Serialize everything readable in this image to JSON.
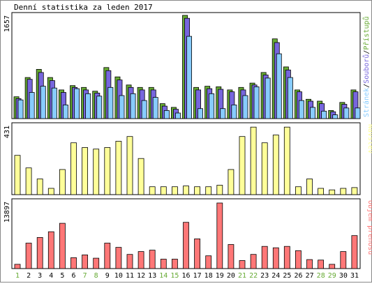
{
  "chart_data": [
    {
      "type": "bar",
      "title": "Denní statistika za leden 2017",
      "panel": "top",
      "y_label_value": "1657",
      "categories": [
        "1",
        "2",
        "3",
        "4",
        "5",
        "6",
        "7",
        "8",
        "9",
        "10",
        "11",
        "12",
        "13",
        "14",
        "15",
        "16",
        "17",
        "18",
        "19",
        "20",
        "21",
        "22",
        "23",
        "24",
        "25",
        "26",
        "27",
        "28",
        "29",
        "30",
        "31"
      ],
      "weekend_days": [
        "1",
        "7",
        "8",
        "14",
        "15",
        "21",
        "22",
        "28",
        "29"
      ],
      "ylim": [
        0,
        1657
      ],
      "legend": [
        "Stránek",
        "Souborů",
        "Přístupů"
      ],
      "series": [
        {
          "name": "Přístupů",
          "color": "#66aa33",
          "values": [
            350,
            660,
            790,
            660,
            460,
            530,
            500,
            440,
            820,
            670,
            540,
            500,
            500,
            240,
            180,
            1657,
            500,
            520,
            510,
            460,
            500,
            570,
            740,
            1280,
            830,
            460,
            310,
            280,
            130,
            260,
            460
          ]
        },
        {
          "name": "Souborů",
          "color": "#7766dd",
          "values": [
            320,
            630,
            740,
            610,
            420,
            500,
            460,
            410,
            770,
            620,
            500,
            460,
            460,
            200,
            150,
            1610,
            460,
            480,
            470,
            430,
            460,
            540,
            700,
            1220,
            780,
            430,
            280,
            240,
            110,
            230,
            430
          ]
        },
        {
          "name": "Stránek",
          "color": "#88ccff",
          "values": [
            300,
            420,
            520,
            490,
            220,
            480,
            400,
            360,
            500,
            370,
            400,
            290,
            340,
            130,
            90,
            1320,
            160,
            400,
            160,
            220,
            370,
            510,
            650,
            1040,
            660,
            290,
            180,
            120,
            60,
            170,
            170
          ]
        }
      ]
    },
    {
      "type": "bar",
      "panel": "middle",
      "y_label_value": "431",
      "ylim": [
        0,
        431
      ],
      "series": [
        {
          "name": "Návštěv",
          "color": "#ffff99",
          "values": [
            250,
            170,
            100,
            40,
            160,
            330,
            300,
            290,
            300,
            340,
            370,
            230,
            50,
            50,
            50,
            55,
            50,
            50,
            60,
            160,
            370,
            430,
            330,
            380,
            430,
            50,
            100,
            40,
            30,
            40,
            45
          ]
        }
      ]
    },
    {
      "type": "bar",
      "panel": "bottom",
      "y_label_value": "13897",
      "ylim": [
        0,
        13897
      ],
      "series": [
        {
          "name": "Objem přenosů",
          "color": "#ff7777",
          "values": [
            900,
            5400,
            6600,
            7800,
            9600,
            2300,
            2900,
            2200,
            5400,
            4500,
            3000,
            3600,
            3900,
            2000,
            2000,
            9800,
            6300,
            2700,
            13897,
            5100,
            1700,
            3000,
            4700,
            4400,
            4700,
            3800,
            1900,
            1800,
            900,
            3600,
            7000
          ]
        }
      ]
    }
  ],
  "colors": {
    "weekend_label": "#66aa33",
    "weekday_label": "#000000",
    "frame": "#000000",
    "background": "#ffffff",
    "panel_bg": "#ffffff"
  }
}
